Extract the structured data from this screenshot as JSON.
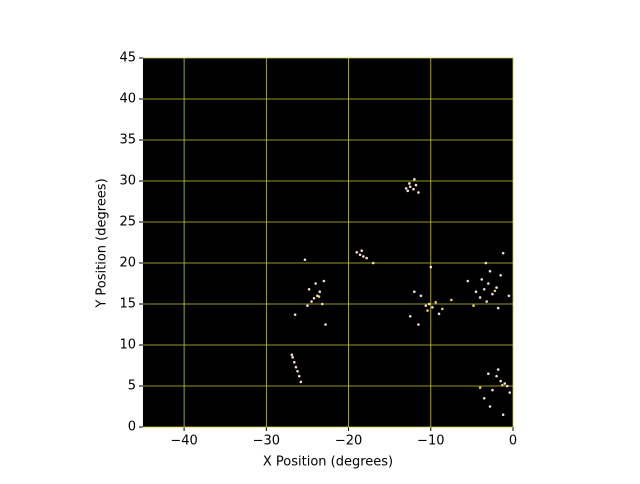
{
  "chart_data": {
    "type": "scatter",
    "xlabel": "X Position (degrees)",
    "ylabel": "Y Position (degrees)",
    "xlim": [
      -45,
      0
    ],
    "ylim": [
      0,
      45
    ],
    "xticks": [
      {
        "value": -40,
        "label": "−40"
      },
      {
        "value": -30,
        "label": "−30"
      },
      {
        "value": -20,
        "label": "−20"
      },
      {
        "value": -10,
        "label": "−10"
      },
      0
    ],
    "yticks": [
      0,
      5,
      10,
      15,
      20,
      25,
      30,
      35,
      40,
      45
    ],
    "grid": true,
    "grid_color": "#c8c832",
    "background": "#000000",
    "series": [
      {
        "color": "#f4dcd0",
        "x": [
          -12.5,
          -12.1,
          -11.8,
          -12.8,
          -12.0,
          -11.5,
          -12.6,
          -13.0,
          -18.6,
          -18.2,
          -19.0,
          -18.4,
          -17.8,
          -17.0,
          -24.2,
          -23.8,
          -24.5,
          -23.5,
          -24.8,
          -23.2,
          -24.0,
          -25.0,
          -23.0,
          -25.3,
          -26.5,
          -22.8,
          -26.8,
          -26.6,
          -26.4,
          -26.2,
          -26.0,
          -26.9,
          -25.8,
          -10.2,
          -9.8,
          -10.6,
          -11.2,
          -12.0,
          -9.0,
          -11.5,
          -10.0,
          -12.5,
          -3.5,
          -3.0,
          -4.0,
          -2.5,
          -3.8,
          -2.0,
          -4.5,
          -3.2,
          -1.5,
          -2.8,
          -1.2,
          -5.5,
          -1.8,
          -0.5,
          -3.3,
          -1.0,
          -1.5,
          -0.7,
          -2.0,
          -2.5,
          -3.5,
          -0.4,
          -1.8,
          -2.8,
          -1.2,
          -3.0
        ],
        "values": [
          29.3,
          29.0,
          29.5,
          28.8,
          30.2,
          28.6,
          29.7,
          29.1,
          21.0,
          20.8,
          21.3,
          21.5,
          20.6,
          20.0,
          15.7,
          16.0,
          15.3,
          16.5,
          16.8,
          15.0,
          17.5,
          14.8,
          17.8,
          20.4,
          13.7,
          12.5,
          8.5,
          7.9,
          7.3,
          6.8,
          6.2,
          8.8,
          5.5,
          15.0,
          14.6,
          14.8,
          16.0,
          16.5,
          13.8,
          12.5,
          19.5,
          13.5,
          16.8,
          17.5,
          15.8,
          16.2,
          18.0,
          17.0,
          16.5,
          15.3,
          18.5,
          19.0,
          21.2,
          17.8,
          14.5,
          16.0,
          20.0,
          5.3,
          5.6,
          5.0,
          6.2,
          4.5,
          3.5,
          4.2,
          7.0,
          2.5,
          1.5,
          6.5
        ]
      },
      {
        "color": "#e8d24a",
        "x": [
          -9.4,
          -8.6,
          -7.5,
          -10.4,
          -4.8,
          -4.0,
          -1.3,
          -23.6,
          -2.2
        ],
        "values": [
          15.2,
          14.4,
          15.5,
          14.2,
          14.8,
          4.8,
          5.1,
          15.9,
          16.6
        ]
      }
    ]
  }
}
